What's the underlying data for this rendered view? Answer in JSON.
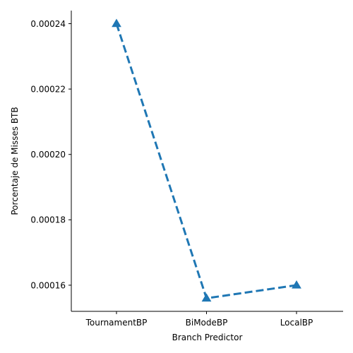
{
  "chart_data": {
    "type": "line",
    "title": "",
    "xlabel": "Branch Predictor",
    "ylabel": "Porcentaje de Misses BTB",
    "categories": [
      "TournamentBP",
      "BiModeBP",
      "LocalBP"
    ],
    "series": [
      {
        "values": [
          0.00024,
          0.000156,
          0.00016
        ],
        "color": "#1f77b4",
        "marker": "triangle-up",
        "line_style": "dashed"
      }
    ],
    "ylim": [
      0.000152,
      0.000244
    ],
    "yticks": [
      0.00016,
      0.00018,
      0.0002,
      0.00022,
      0.00024
    ],
    "ytick_labels": [
      "0.00016",
      "0.00018",
      "0.00020",
      "0.00022",
      "0.00024"
    ],
    "grid": false,
    "legend": "none"
  }
}
